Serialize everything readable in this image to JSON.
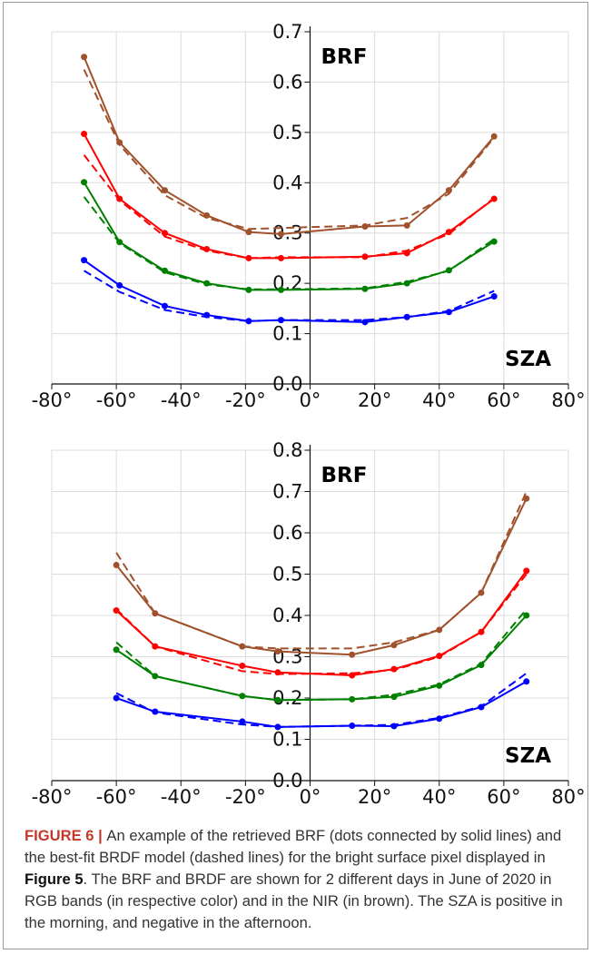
{
  "chart_data": [
    {
      "type": "line",
      "xlim": [
        -80,
        80
      ],
      "ylim": [
        0,
        0.7
      ],
      "xticks": [
        "-80°",
        "-60°",
        "-40°",
        "-20°",
        "0°",
        "20°",
        "40°",
        "60°",
        "80°"
      ],
      "yticks": [
        "0.0",
        "0.1",
        "0.2",
        "0.3",
        "0.4",
        "0.5",
        "0.6",
        "0.7"
      ],
      "label_top": "BRF",
      "label_bottom": "SZA",
      "grid": true,
      "series": [
        {
          "color": "#a0522d",
          "observed": {
            "x": [
              -70,
              -59,
              -45,
              -32,
              -19,
              -9,
              17,
              30,
              43,
              57
            ],
            "y": [
              0.65,
              0.48,
              0.385,
              0.335,
              0.302,
              0.298,
              0.313,
              0.315,
              0.385,
              0.492
            ]
          },
          "model": {
            "x": [
              -70,
              -59,
              -45,
              -32,
              -19,
              -9,
              17,
              30,
              43,
              57
            ],
            "y": [
              0.625,
              0.475,
              0.375,
              0.33,
              0.308,
              0.31,
              0.315,
              0.33,
              0.378,
              0.49
            ]
          }
        },
        {
          "color": "#ff0000",
          "observed": {
            "x": [
              -70,
              -59,
              -45,
              -32,
              -19,
              -9,
              17,
              30,
              43,
              57
            ],
            "y": [
              0.497,
              0.368,
              0.3,
              0.268,
              0.25,
              0.25,
              0.253,
              0.26,
              0.302,
              0.368
            ]
          },
          "model": {
            "x": [
              -70,
              -59,
              -45,
              -32,
              -19,
              -9,
              17,
              30,
              43,
              57
            ],
            "y": [
              0.455,
              0.365,
              0.293,
              0.265,
              0.25,
              0.252,
              0.252,
              0.265,
              0.298,
              0.37
            ]
          }
        },
        {
          "color": "#008000",
          "observed": {
            "x": [
              -70,
              -59,
              -45,
              -32,
              -19,
              -9,
              17,
              30,
              43,
              57
            ],
            "y": [
              0.401,
              0.282,
              0.225,
              0.2,
              0.187,
              0.187,
              0.189,
              0.2,
              0.226,
              0.283
            ]
          },
          "model": {
            "x": [
              -70,
              -59,
              -45,
              -32,
              -19,
              -9,
              17,
              30,
              43,
              57
            ],
            "y": [
              0.372,
              0.28,
              0.222,
              0.198,
              0.188,
              0.188,
              0.19,
              0.203,
              0.225,
              0.288
            ]
          }
        },
        {
          "color": "#0000ff",
          "observed": {
            "x": [
              -70,
              -59,
              -45,
              -32,
              -19,
              -9,
              17,
              30,
              43,
              57
            ],
            "y": [
              0.246,
              0.196,
              0.155,
              0.137,
              0.125,
              0.127,
              0.123,
              0.133,
              0.143,
              0.174
            ]
          },
          "model": {
            "x": [
              -70,
              -59,
              -45,
              -32,
              -19,
              -9,
              17,
              30,
              43,
              57
            ],
            "y": [
              0.225,
              0.183,
              0.147,
              0.133,
              0.125,
              0.127,
              0.127,
              0.133,
              0.145,
              0.185
            ]
          }
        }
      ]
    },
    {
      "type": "line",
      "xlim": [
        -80,
        80
      ],
      "ylim": [
        0,
        0.8
      ],
      "xticks": [
        "-80°",
        "-60°",
        "-40°",
        "-20°",
        "0°",
        "20°",
        "40°",
        "60°",
        "80°"
      ],
      "yticks": [
        "0.0",
        "0.1",
        "0.2",
        "0.3",
        "0.4",
        "0.5",
        "0.6",
        "0.7",
        "0.8"
      ],
      "label_top": "BRF",
      "label_bottom": "SZA",
      "grid": true,
      "series": [
        {
          "color": "#a0522d",
          "observed": {
            "x": [
              -60,
              -48,
              -21,
              -10,
              13,
              26,
              40,
              53,
              67
            ],
            "y": [
              0.522,
              0.405,
              0.325,
              0.313,
              0.305,
              0.328,
              0.365,
              0.455,
              0.683
            ]
          },
          "model": {
            "x": [
              -60,
              -48,
              -21,
              -10,
              13,
              26,
              40,
              53,
              67
            ],
            "y": [
              0.552,
              0.405,
              0.325,
              0.32,
              0.32,
              0.335,
              0.365,
              0.455,
              0.7
            ]
          }
        },
        {
          "color": "#ff0000",
          "observed": {
            "x": [
              -60,
              -48,
              -21,
              -10,
              13,
              26,
              40,
              53,
              67
            ],
            "y": [
              0.412,
              0.325,
              0.278,
              0.262,
              0.255,
              0.27,
              0.302,
              0.36,
              0.508
            ]
          },
          "model": {
            "x": [
              -60,
              -48,
              -21,
              -10,
              13,
              26,
              40,
              53,
              67
            ],
            "y": [
              0.415,
              0.325,
              0.265,
              0.258,
              0.26,
              0.268,
              0.3,
              0.36,
              0.5
            ]
          }
        },
        {
          "color": "#008000",
          "observed": {
            "x": [
              -60,
              -48,
              -21,
              -10,
              13,
              26,
              40,
              53,
              67
            ],
            "y": [
              0.317,
              0.253,
              0.205,
              0.195,
              0.197,
              0.203,
              0.23,
              0.28,
              0.4
            ]
          },
          "model": {
            "x": [
              -60,
              -48,
              -21,
              -10,
              13,
              26,
              40,
              53,
              67
            ],
            "y": [
              0.335,
              0.253,
              0.205,
              0.195,
              0.197,
              0.208,
              0.233,
              0.283,
              0.415
            ]
          }
        },
        {
          "color": "#0000ff",
          "observed": {
            "x": [
              -60,
              -48,
              -21,
              -10,
              13,
              26,
              40,
              53,
              67
            ],
            "y": [
              0.2,
              0.167,
              0.143,
              0.13,
              0.133,
              0.132,
              0.15,
              0.178,
              0.24
            ]
          },
          "model": {
            "x": [
              -60,
              -48,
              -21,
              -10,
              13,
              26,
              40,
              53,
              67
            ],
            "y": [
              0.212,
              0.165,
              0.136,
              0.13,
              0.133,
              0.135,
              0.152,
              0.18,
              0.26
            ]
          }
        }
      ]
    }
  ],
  "caption": {
    "figure_label": "FIGURE 6",
    "separator": " | ",
    "part1": "An example of the retrieved BRF (dots connected by solid lines) and the best-fit BRDF model (dashed lines) for the bright surface pixel displayed in ",
    "figure_ref": "Figure 5",
    "part2": ". The BRF and BRDF are shown for 2 different days in June of 2020 in RGB bands (in respective color) and in the NIR (in brown). The SZA is positive in the morning, and negative in the afternoon."
  }
}
